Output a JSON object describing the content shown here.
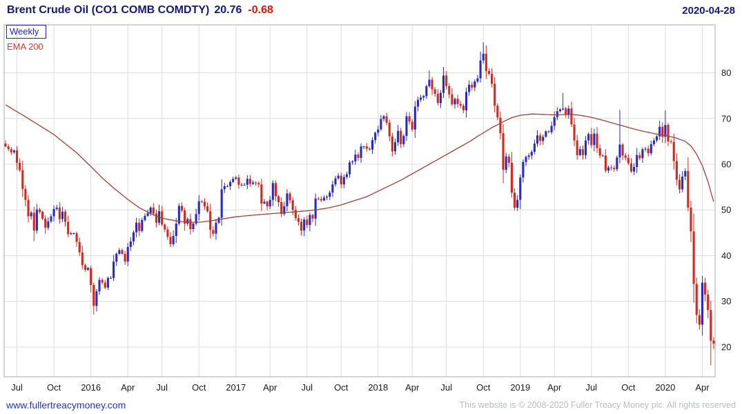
{
  "header": {
    "title": "Brent Crude Oil  (CO1 COMB COMDTY)",
    "price": "20.76",
    "change": "-0.68",
    "date": "2020-04-28"
  },
  "legend": {
    "period": "Weekly",
    "overlay": "EMA 200"
  },
  "footer": {
    "site_link": "www.fullertreacymoney.com",
    "copyright": "This website is © 2008-2020 Fuller Treacy Money plc. All rights reserved"
  },
  "colors": {
    "background": "#ffffff",
    "up_candle": "#2a2ac2",
    "down_candle": "#d2281e",
    "ema_line": "#9b4037",
    "grid_line": "#dcdcdc",
    "plot_border": "#a8a8a8",
    "axis_text": "#1a1a1a",
    "title_text": "#17177c",
    "change_negative": "#dc1400",
    "period_label": "#1f1fd0",
    "ema_label": "#cf3a2b",
    "link_text": "#2433cc",
    "copyright_text": "#b9bdc2"
  },
  "chart_data": {
    "type": "candlestick",
    "title": "Brent Crude Oil (CO1 COMB COMDTY)",
    "timeframe": "Weekly",
    "legend_entries": [
      "Weekly",
      "EMA 200"
    ],
    "legend_position": "top-left",
    "grid": true,
    "xlabel": "",
    "ylabel": "",
    "y_ticks": [
      20,
      30,
      40,
      50,
      60,
      70,
      80
    ],
    "y_range": [
      13.5,
      90.5
    ],
    "x_ticks": [
      {
        "label": "Jul",
        "i": 4
      },
      {
        "label": "Oct",
        "i": 17
      },
      {
        "label": "2016",
        "i": 30
      },
      {
        "label": "Apr",
        "i": 43
      },
      {
        "label": "Jul",
        "i": 55
      },
      {
        "label": "Oct",
        "i": 68
      },
      {
        "label": "2017",
        "i": 81
      },
      {
        "label": "Apr",
        "i": 93
      },
      {
        "label": "Jul",
        "i": 106
      },
      {
        "label": "Oct",
        "i": 118
      },
      {
        "label": "2018",
        "i": 131
      },
      {
        "label": "Apr",
        "i": 143
      },
      {
        "label": "Jul",
        "i": 155
      },
      {
        "label": "Oct",
        "i": 168
      },
      {
        "label": "2019",
        "i": 181
      },
      {
        "label": "Apr",
        "i": 193
      },
      {
        "label": "Jul",
        "i": 206
      },
      {
        "label": "Oct",
        "i": 219
      },
      {
        "label": "2020",
        "i": 232
      },
      {
        "label": "Apr",
        "i": 245
      }
    ],
    "weekly_closes": [
      63.9,
      63.3,
      62.6,
      63.0,
      60.3,
      58.7,
      54.6,
      52.2,
      48.6,
      49.4,
      45.5,
      50.1,
      49.6,
      48.1,
      46.1,
      47.5,
      48.6,
      50.2,
      50.5,
      48.0,
      49.6,
      47.4,
      44.7,
      44.9,
      44.9,
      43.0,
      40.7,
      37.9,
      36.9,
      37.3,
      33.6,
      29.0,
      32.2,
      34.7,
      34.1,
      33.0,
      35.1,
      35.1,
      38.7,
      40.4,
      41.2,
      40.4,
      38.7,
      41.9,
      43.1,
      45.1,
      47.2,
      45.4,
      47.8,
      48.7,
      49.3,
      50.5,
      49.2,
      47.2,
      49.7,
      46.8,
      45.7,
      44.1,
      42.5,
      44.3,
      47.0,
      50.9,
      49.9,
      47.0,
      48.0,
      45.8,
      47.0,
      49.1,
      51.9,
      51.8,
      50.8,
      49.7,
      45.6,
      44.8,
      47.2,
      48.3,
      54.5,
      55.2,
      55.2,
      56.1,
      56.8,
      57.1,
      55.5,
      55.5,
      55.5,
      56.8,
      55.7,
      56.0,
      55.9,
      55.6,
      51.4,
      51.8,
      50.8,
      52.2,
      55.9,
      53.0,
      51.7,
      49.1,
      50.8,
      53.6,
      52.1,
      50.0,
      48.2,
      47.4,
      45.5,
      47.9,
      46.7,
      48.9,
      48.1,
      52.5,
      52.4,
      52.1,
      52.7,
      52.9,
      53.8,
      55.6,
      56.9,
      57.5,
      55.6,
      57.2,
      57.8,
      60.4,
      60.6,
      62.1,
      61.4,
      63.9,
      63.9,
      63.4,
      63.2,
      65.3,
      66.9,
      67.6,
      69.9,
      70.5,
      69.1,
      66.1,
      62.8,
      64.8,
      67.3,
      64.4,
      66.2,
      70.5,
      69.3,
      67.6,
      72.6,
      74.1,
      74.6,
      74.9,
      77.1,
      78.5,
      76.4,
      75.4,
      73.4,
      75.6,
      79.4,
      77.1,
      75.3,
      73.1,
      74.3,
      73.2,
      72.8,
      71.8,
      75.8,
      77.4,
      76.8,
      78.1,
      78.8,
      82.7,
      84.2,
      80.4,
      79.8,
      77.6,
      72.8,
      70.2,
      66.8,
      58.8,
      61.7,
      60.3,
      53.8,
      50.5,
      52.2,
      57.1,
      60.5,
      61.6,
      61.9,
      62.7,
      64.5,
      66.3,
      65.1,
      66.0,
      67.2,
      67.0,
      68.4,
      70.3,
      71.6,
      72.0,
      72.2,
      70.9,
      72.2,
      68.7,
      65.2,
      62.0,
      63.3,
      62.0,
      65.2,
      66.6,
      64.2,
      66.7,
      63.5,
      61.9,
      61.9,
      58.6,
      59.3,
      59.2,
      58.9,
      61.5,
      64.3,
      61.9,
      61.4,
      60.2,
      58.4,
      59.4,
      62.0,
      61.3,
      63.3,
      63.4,
      62.4,
      64.4,
      65.2,
      66.1,
      68.2,
      66.0,
      68.6,
      65.0,
      64.9,
      60.7,
      56.6,
      54.5,
      57.3,
      58.5,
      50.5,
      45.3,
      33.8,
      27.0,
      24.9,
      34.1,
      31.5,
      28.1,
      21.4,
      20.76
    ],
    "wick_overrides": {
      "10": {
        "low": 43.2
      },
      "31": {
        "low": 27.1
      },
      "104": {
        "low": 44.4
      },
      "149": {
        "high": 80.5
      },
      "168": {
        "high": 86.7
      },
      "179": {
        "low": 49.9
      },
      "196": {
        "high": 75.6
      },
      "216": {
        "high": 71.9
      },
      "232": {
        "high": 71.8
      },
      "248": {
        "low": 16.0
      },
      "249": {
        "low": 19.6
      }
    },
    "ema_label": "EMA 200",
    "ema_anchors": [
      [
        0,
        73
      ],
      [
        8,
        70
      ],
      [
        17,
        66.5
      ],
      [
        25,
        62.5
      ],
      [
        30,
        59.5
      ],
      [
        34,
        57
      ],
      [
        38,
        54.8
      ],
      [
        43,
        52.3
      ],
      [
        47,
        50.5
      ],
      [
        51,
        49.2
      ],
      [
        55,
        48.2
      ],
      [
        60,
        47.6
      ],
      [
        64,
        47.3
      ],
      [
        68,
        47.3
      ],
      [
        72,
        47.6
      ],
      [
        76,
        48
      ],
      [
        81,
        48.5
      ],
      [
        86,
        48.8
      ],
      [
        90,
        49
      ],
      [
        94,
        49.2
      ],
      [
        98,
        49.4
      ],
      [
        102,
        49.6
      ],
      [
        106,
        49.8
      ],
      [
        110,
        50.1
      ],
      [
        114,
        50.5
      ],
      [
        118,
        51.1
      ],
      [
        122,
        51.9
      ],
      [
        127,
        52.9
      ],
      [
        131,
        54.1
      ],
      [
        135,
        55.3
      ],
      [
        139,
        56.5
      ],
      [
        143,
        57.9
      ],
      [
        147,
        59.3
      ],
      [
        151,
        60.7
      ],
      [
        155,
        62.1
      ],
      [
        159,
        63.5
      ],
      [
        163,
        64.9
      ],
      [
        167,
        66.5
      ],
      [
        171,
        68
      ],
      [
        175,
        69.3
      ],
      [
        178,
        70.2
      ],
      [
        181,
        70.7
      ],
      [
        185,
        71
      ],
      [
        189,
        70.9
      ],
      [
        193,
        70.8
      ],
      [
        197,
        70.9
      ],
      [
        201,
        70.8
      ],
      [
        205,
        70.4
      ],
      [
        209,
        69.8
      ],
      [
        213,
        69.1
      ],
      [
        217,
        68.4
      ],
      [
        221,
        67.7
      ],
      [
        225,
        67.1
      ],
      [
        229,
        66.6
      ],
      [
        232,
        66.3
      ],
      [
        236,
        65.7
      ],
      [
        239,
        65
      ],
      [
        241,
        64
      ],
      [
        243,
        62.2
      ],
      [
        245,
        59.7
      ],
      [
        247,
        56.2
      ],
      [
        249,
        51.8
      ]
    ]
  }
}
